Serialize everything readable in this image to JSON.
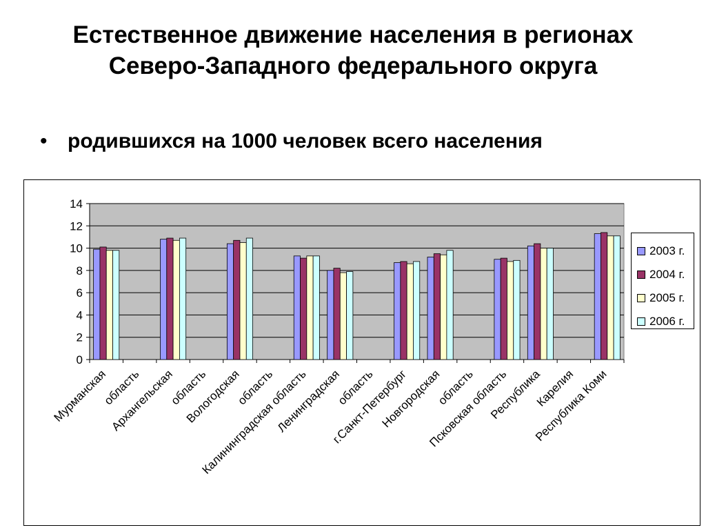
{
  "slide": {
    "title": "Естественное движение населения в регионах Северо-Западного федерального округа",
    "bullet_mark": "•",
    "bullet": "родившихся на 1000 человек всего населения"
  },
  "chart_data": {
    "type": "bar",
    "title": "",
    "xlabel": "",
    "ylabel": "",
    "ylim": [
      0,
      14
    ],
    "yticks": [
      0,
      2,
      4,
      6,
      8,
      10,
      12,
      14
    ],
    "grid": true,
    "legend_position": "right",
    "plot_background": "#C0C0C0",
    "categories": [
      "Мурманская",
      "область",
      "Архангельская",
      "область",
      "Вологодская",
      "область",
      "Калининградская область",
      "Ленинградская",
      "область",
      "г.Санкт-Петербург",
      "Новгородская",
      "область",
      "Псковская область",
      "Республика",
      "Карелия",
      "Республика Коми"
    ],
    "groups": [
      {
        "label": "Мурманская область",
        "categories": [
          0,
          1
        ]
      },
      {
        "label": "Архангельская область",
        "categories": [
          2,
          3
        ]
      },
      {
        "label": "Вологодская область",
        "categories": [
          4,
          5
        ]
      },
      {
        "label": "Калининградская область",
        "categories": [
          6
        ]
      },
      {
        "label": "Ленинградская область",
        "categories": [
          7,
          8
        ]
      },
      {
        "label": "г.Санкт-Петербург",
        "categories": [
          9
        ]
      },
      {
        "label": "Новгородская область",
        "categories": [
          10,
          11
        ]
      },
      {
        "label": "Псковская область",
        "categories": [
          12
        ]
      },
      {
        "label": "Республика Карелия",
        "categories": [
          13,
          14
        ]
      },
      {
        "label": "Республика Коми",
        "categories": [
          15
        ]
      }
    ],
    "series": [
      {
        "name": "2003 г.",
        "color": "#9999FF",
        "values": [
          9.9,
          null,
          10.8,
          null,
          10.4,
          null,
          9.3,
          8.0,
          null,
          8.7,
          9.2,
          null,
          9.0,
          10.2,
          null,
          11.3
        ]
      },
      {
        "name": "2004 г.",
        "color": "#993366",
        "values": [
          10.1,
          null,
          10.9,
          null,
          10.7,
          null,
          9.1,
          8.2,
          null,
          8.8,
          9.5,
          null,
          9.1,
          10.4,
          null,
          11.4
        ]
      },
      {
        "name": "2005 г.",
        "color": "#FFFFCC",
        "values": [
          9.8,
          null,
          10.7,
          null,
          10.5,
          null,
          9.3,
          7.8,
          null,
          8.6,
          9.4,
          null,
          8.8,
          10.0,
          null,
          11.1
        ]
      },
      {
        "name": "2006 г.",
        "color": "#CCFFFF",
        "values": [
          9.8,
          null,
          10.9,
          null,
          10.9,
          null,
          9.3,
          7.9,
          null,
          8.8,
          9.8,
          null,
          8.9,
          10.0,
          null,
          11.1
        ]
      }
    ]
  }
}
